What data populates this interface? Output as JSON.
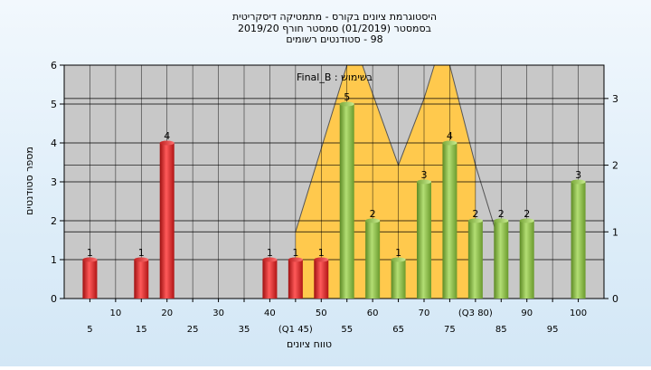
{
  "header": {
    "title_lines": [
      "היסטוגרמת ציונים בקורס - מתמטיקה דיסקריטית",
      "בסמסטר  (01/2019)  סמסטר חורף 2019/20",
      "98 - סטודנטים רשומים"
    ]
  },
  "chart_data": {
    "type": "bar",
    "annotation": "בשימוש : Final_B",
    "xlabel": "טווח ציונים",
    "ylabel": "מספר סטודנטים",
    "ylim": [
      0,
      6
    ],
    "y_ticks": [
      0,
      1,
      2,
      3,
      4,
      5,
      6
    ],
    "y2lim": [
      0,
      3.5
    ],
    "y2_ticks": [
      0,
      1,
      2,
      3
    ],
    "x_range": [
      0,
      105
    ],
    "x_tick_labels": [
      {
        "x": 5,
        "label": "5",
        "row": 2
      },
      {
        "x": 10,
        "label": "10",
        "row": 1
      },
      {
        "x": 15,
        "label": "15",
        "row": 2
      },
      {
        "x": 20,
        "label": "20",
        "row": 1
      },
      {
        "x": 25,
        "label": "25",
        "row": 2
      },
      {
        "x": 30,
        "label": "30",
        "row": 1
      },
      {
        "x": 35,
        "label": "35",
        "row": 2
      },
      {
        "x": 40,
        "label": "40",
        "row": 1
      },
      {
        "x": 45,
        "label": "(Q1 45)",
        "row": 2
      },
      {
        "x": 50,
        "label": "50",
        "row": 1
      },
      {
        "x": 55,
        "label": "55",
        "row": 2
      },
      {
        "x": 60,
        "label": "60",
        "row": 1
      },
      {
        "x": 65,
        "label": "65",
        "row": 2
      },
      {
        "x": 70,
        "label": "70",
        "row": 1
      },
      {
        "x": 75,
        "label": "75",
        "row": 2
      },
      {
        "x": 80,
        "label": "(Q3 80)",
        "row": 1
      },
      {
        "x": 85,
        "label": "85",
        "row": 2
      },
      {
        "x": 90,
        "label": "90",
        "row": 1
      },
      {
        "x": 95,
        "label": "95",
        "row": 2
      },
      {
        "x": 100,
        "label": "100",
        "row": 1
      }
    ],
    "bars": [
      {
        "x": 5,
        "value": 1,
        "color": "red"
      },
      {
        "x": 15,
        "value": 1,
        "color": "red"
      },
      {
        "x": 20,
        "value": 4,
        "color": "red"
      },
      {
        "x": 40,
        "value": 1,
        "color": "red"
      },
      {
        "x": 45,
        "value": 1,
        "color": "red"
      },
      {
        "x": 50,
        "value": 1,
        "color": "red"
      },
      {
        "x": 55,
        "value": 5,
        "color": "green"
      },
      {
        "x": 60,
        "value": 2,
        "color": "green"
      },
      {
        "x": 65,
        "value": 1,
        "color": "green"
      },
      {
        "x": 70,
        "value": 3,
        "color": "green"
      },
      {
        "x": 75,
        "value": 4,
        "color": "green"
      },
      {
        "x": 80,
        "value": 2,
        "color": "green"
      },
      {
        "x": 85,
        "value": 2,
        "color": "green"
      },
      {
        "x": 90,
        "value": 2,
        "color": "green"
      },
      {
        "x": 100,
        "value": 3,
        "color": "green"
      }
    ],
    "density_area": [
      [
        45,
        1
      ],
      [
        55,
        3.5
      ],
      [
        58,
        3.5
      ],
      [
        65,
        2
      ],
      [
        70,
        3
      ],
      [
        72,
        3.5
      ],
      [
        75,
        3.5
      ],
      [
        80,
        2
      ]
    ],
    "density_tail": [
      [
        80,
        2
      ],
      [
        84,
        1
      ]
    ],
    "colors": {
      "plot_bg": "#c8c8c8",
      "density_fill": "#ffc94d",
      "bar_red": "#e83535",
      "bar_green": "#8cbc4a",
      "grid": "#000000"
    }
  }
}
